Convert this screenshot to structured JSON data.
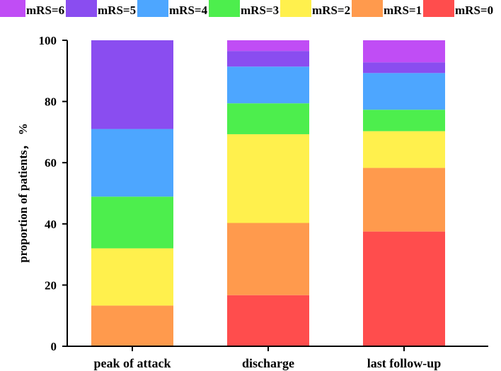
{
  "chart_data": {
    "type": "bar",
    "stacked": true,
    "title": "",
    "xlabel": "",
    "ylabel": "proportion of patients， %",
    "ylim": [
      0,
      100
    ],
    "yticks": [
      0,
      20,
      40,
      60,
      80,
      100
    ],
    "categories": [
      "peak of attack",
      "discharge",
      "last follow-up"
    ],
    "legend_position": "top",
    "series": [
      {
        "name": "mRS=0",
        "color": "#ff4d4d",
        "values": [
          0,
          16.7,
          37.5
        ]
      },
      {
        "name": "mRS=1",
        "color": "#ff9a4d",
        "values": [
          13.3,
          23.6,
          20.8
        ]
      },
      {
        "name": "mRS=2",
        "color": "#fff04d",
        "values": [
          18.7,
          29.0,
          12.0
        ]
      },
      {
        "name": "mRS=3",
        "color": "#4dee4d",
        "values": [
          16.9,
          10.1,
          7.0
        ]
      },
      {
        "name": "mRS=4",
        "color": "#4da6ff",
        "values": [
          22.1,
          12.0,
          12.0
        ]
      },
      {
        "name": "mRS=5",
        "color": "#8a4df0",
        "values": [
          29.0,
          5.1,
          3.5
        ]
      },
      {
        "name": "mRS=6",
        "color": "#c04df5",
        "values": [
          0,
          3.5,
          7.2
        ]
      }
    ],
    "legend_order": [
      "mRS=6",
      "mRS=5",
      "mRS=4",
      "mRS=3",
      "mRS=2",
      "mRS=1",
      "mRS=0"
    ]
  }
}
